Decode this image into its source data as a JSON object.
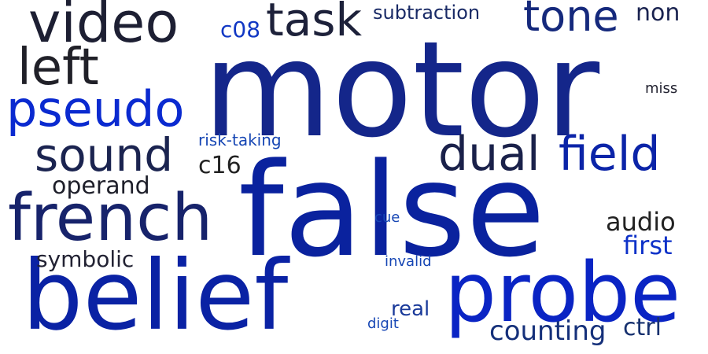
{
  "cloud": {
    "words": [
      {
        "text": "motor",
        "color": "#14268a",
        "orientation": "horizontal"
      },
      {
        "text": "false",
        "color": "#0a229e",
        "orientation": "horizontal"
      },
      {
        "text": "belief",
        "color": "#0a22a4",
        "orientation": "horizontal"
      },
      {
        "text": "probe",
        "color": "#0a24c4",
        "orientation": "horizontal"
      },
      {
        "text": "french",
        "color": "#17236b",
        "orientation": "horizontal"
      },
      {
        "text": "video",
        "color": "#1d1f33",
        "orientation": "horizontal"
      },
      {
        "text": "left",
        "color": "#202028",
        "orientation": "horizontal"
      },
      {
        "text": "pseudo",
        "color": "#0a2ad0",
        "orientation": "horizontal"
      },
      {
        "text": "sound",
        "color": "#1b2450",
        "orientation": "horizontal"
      },
      {
        "text": "task",
        "color": "#1d213a",
        "orientation": "horizontal"
      },
      {
        "text": "tone",
        "color": "#15297c",
        "orientation": "horizontal"
      },
      {
        "text": "dual",
        "color": "#1a214a",
        "orientation": "horizontal"
      },
      {
        "text": "field",
        "color": "#0b24a8",
        "orientation": "horizontal"
      },
      {
        "text": "subtraction",
        "color": "#192a66",
        "orientation": "horizontal"
      },
      {
        "text": "non",
        "color": "#1a2350",
        "orientation": "horizontal"
      },
      {
        "text": "c08",
        "color": "#1238c4",
        "orientation": "horizontal"
      },
      {
        "text": "c16",
        "color": "#222222",
        "orientation": "horizontal"
      },
      {
        "text": "operand",
        "color": "#1e1f2a",
        "orientation": "horizontal"
      },
      {
        "text": "risk-taking",
        "color": "#1646b4",
        "orientation": "horizontal"
      },
      {
        "text": "audio",
        "color": "#222222",
        "orientation": "horizontal"
      },
      {
        "text": "first",
        "color": "#0d31c8",
        "orientation": "horizontal"
      },
      {
        "text": "symbolic",
        "color": "#222233",
        "orientation": "horizontal"
      },
      {
        "text": "counting",
        "color": "#15307a",
        "orientation": "horizontal"
      },
      {
        "text": "ctrl",
        "color": "#16306e",
        "orientation": "horizontal"
      },
      {
        "text": "real",
        "color": "#1a3a9a",
        "orientation": "horizontal"
      },
      {
        "text": "cue",
        "color": "#1646b4",
        "orientation": "horizontal"
      },
      {
        "text": "invalid",
        "color": "#1646b4",
        "orientation": "horizontal"
      },
      {
        "text": "digit",
        "color": "#1646b4",
        "orientation": "horizontal"
      },
      {
        "text": "miss",
        "color": "#222230",
        "orientation": "horizontal"
      }
    ]
  }
}
